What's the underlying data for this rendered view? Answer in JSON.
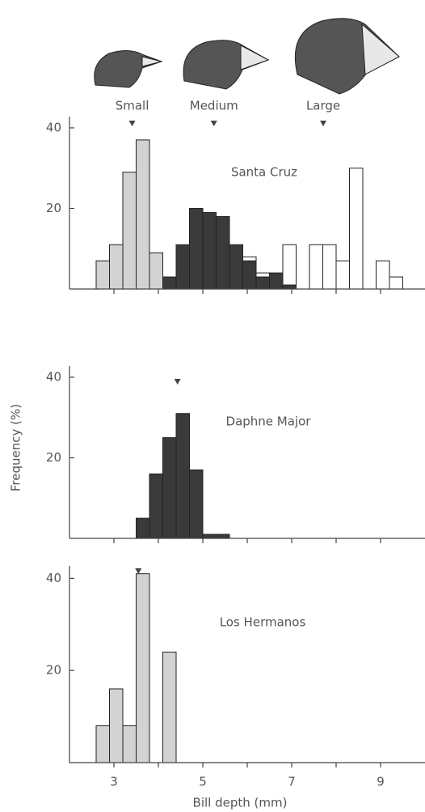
{
  "chart_data": [
    {
      "type": "histogram",
      "title": "Santa Cruz",
      "bins": [
        2.6,
        2.9,
        3.2,
        3.5,
        3.8,
        4.1,
        4.4,
        4.7,
        5.0,
        5.3,
        5.6,
        5.9,
        6.2,
        6.5,
        6.8,
        7.1,
        7.4,
        7.7,
        8.0,
        8.3,
        8.6,
        8.9,
        9.2,
        9.5
      ],
      "series": [
        {
          "name": "Small",
          "color": "#d2d2d2",
          "mean": 3.41,
          "values": [
            7,
            11,
            29,
            37,
            9,
            0,
            0,
            0,
            0,
            0,
            0,
            0,
            0,
            0,
            0,
            0,
            0,
            0,
            0,
            0,
            0,
            0,
            0
          ]
        },
        {
          "name": "Medium",
          "color": "#3a3a3a",
          "mean": 5.25,
          "values": [
            0,
            0,
            0,
            0,
            0,
            3,
            11,
            20,
            19,
            18,
            11,
            7,
            3,
            4,
            1,
            0,
            0,
            0,
            0,
            0,
            0,
            0,
            0
          ]
        },
        {
          "name": "Large",
          "color": "#ffffff",
          "mean": 7.71,
          "values": [
            0,
            0,
            0,
            0,
            0,
            0,
            0,
            0,
            0,
            0,
            0,
            8,
            4,
            3,
            11,
            0,
            11,
            11,
            7,
            30,
            0,
            7,
            3
          ]
        }
      ],
      "xlim": [
        2,
        10
      ],
      "ylim": [
        0,
        42
      ],
      "yticks": [
        20,
        40
      ],
      "xminorticks": [
        3,
        4,
        5,
        6,
        7,
        8,
        9
      ]
    },
    {
      "type": "histogram",
      "title": "Daphne Major",
      "ylabel": "Frequency (%)",
      "bins": [
        3.5,
        3.8,
        4.1,
        4.4,
        4.7,
        5.0,
        5.3,
        5.6
      ],
      "series": [
        {
          "color": "#3a3a3a",
          "mean": 4.43,
          "values": [
            5,
            16,
            25,
            31,
            17,
            1,
            1
          ]
        }
      ],
      "xlim": [
        2,
        10
      ],
      "ylim": [
        0,
        42
      ],
      "yticks": [
        20,
        40
      ],
      "xminorticks": [
        3,
        4,
        5,
        6,
        7,
        8,
        9
      ]
    },
    {
      "type": "histogram",
      "title": "Los Hermanos",
      "xlabel": "Bill depth (mm)",
      "bins": [
        2.6,
        2.9,
        3.2,
        3.5,
        3.8,
        4.1,
        4.4
      ],
      "series": [
        {
          "color": "#d2d2d2",
          "mean": 3.55,
          "values": [
            8,
            16,
            8,
            41,
            0,
            24
          ]
        }
      ],
      "xlim": [
        2,
        10
      ],
      "ylim": [
        0,
        42
      ],
      "yticks": [
        20,
        40
      ],
      "xticks": [
        3,
        5,
        7,
        9
      ],
      "xminorticks": [
        4,
        6,
        8
      ]
    }
  ]
}
